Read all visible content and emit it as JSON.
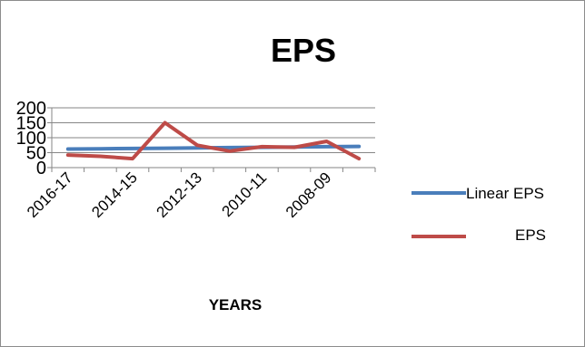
{
  "chart_data": {
    "type": "line",
    "title": "EPS",
    "xlabel": "YEARS",
    "ylabel": "",
    "ylim": [
      0,
      200
    ],
    "yticks": [
      0,
      50,
      100,
      150,
      200
    ],
    "ytick_labels": [
      "0",
      "50",
      "100",
      "150",
      "200"
    ],
    "x_tick_labels": [
      "2016-17",
      "2014-15",
      "2012-13",
      "2010-11",
      "2008-09"
    ],
    "x_tick_positions": [
      1,
      3,
      5,
      7,
      9
    ],
    "grid": true,
    "legend_position": "right",
    "series": [
      {
        "name": "Linear EPS",
        "color": "#4a7ebb",
        "values": [
          62,
          63,
          64,
          65,
          66,
          67,
          68,
          69,
          70,
          71
        ]
      },
      {
        "name": "EPS",
        "color": "#be4b48",
        "values": [
          42,
          38,
          30,
          150,
          75,
          55,
          70,
          68,
          88,
          30
        ]
      }
    ]
  }
}
